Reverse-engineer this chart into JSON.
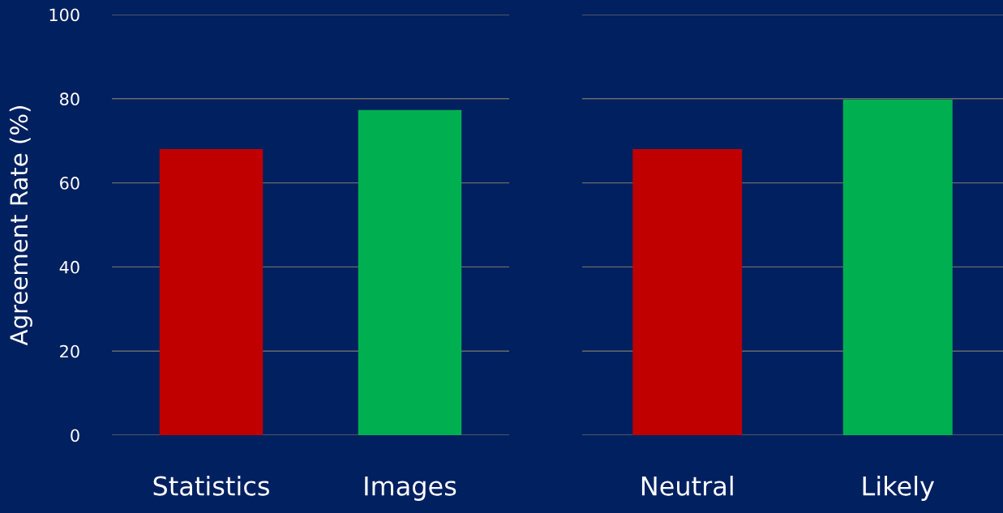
{
  "chart_data": [
    {
      "type": "bar",
      "ylabel": "Agreement Rate (%)",
      "categories": [
        "Statistics",
        "Images"
      ],
      "values": [
        68,
        77.3
      ],
      "colors": [
        "#c00000",
        "#00b050"
      ],
      "ylim": [
        0,
        100
      ],
      "yticks": [
        0,
        20,
        40,
        60,
        80,
        100
      ],
      "grid": "y"
    },
    {
      "type": "bar",
      "categories": [
        "Neutral",
        "Likely"
      ],
      "values": [
        68,
        79.8
      ],
      "colors": [
        "#c00000",
        "#00b050"
      ],
      "ylim": [
        0,
        100
      ],
      "yticks": [
        0,
        20,
        40,
        60,
        80,
        100
      ],
      "grid": "y",
      "tick_labels": "x"
    }
  ]
}
